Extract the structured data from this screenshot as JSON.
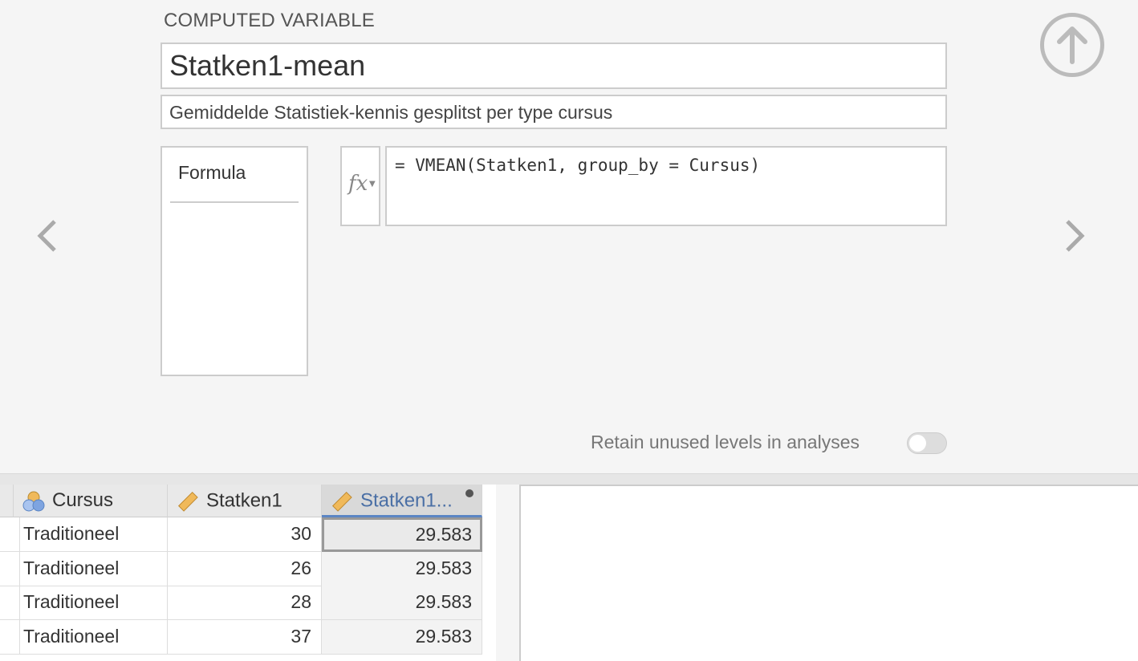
{
  "header": {
    "title": "COMPUTED VARIABLE"
  },
  "variable": {
    "name": "Statken1-mean",
    "description": "Gemiddelde Statistiek-kennis gesplitst per type cursus"
  },
  "methods": {
    "items": [
      "Formula"
    ]
  },
  "formula": {
    "fx_label": "fx",
    "value": "= VMEAN(Statken1, group_by = Cursus)"
  },
  "nav": {
    "prev": "‹",
    "next": "›"
  },
  "retain": {
    "label": "Retain unused levels in analyses",
    "enabled": false
  },
  "grid": {
    "columns": [
      {
        "label": "Cursus",
        "type": "nominal",
        "icon": "nominal-icon"
      },
      {
        "label": "Statken1",
        "type": "continuous",
        "icon": "ruler-icon"
      },
      {
        "label": "Statken1...",
        "type": "continuous",
        "icon": "ruler-icon",
        "selected": true,
        "computed": true
      }
    ],
    "rows": [
      [
        "Traditioneel",
        "30",
        "29.583"
      ],
      [
        "Traditioneel",
        "26",
        "29.583"
      ],
      [
        "Traditioneel",
        "28",
        "29.583"
      ],
      [
        "Traditioneel",
        "37",
        "29.583"
      ]
    ]
  },
  "colors": {
    "accent": "#5b85c4",
    "ruler": "#f0b95a"
  }
}
